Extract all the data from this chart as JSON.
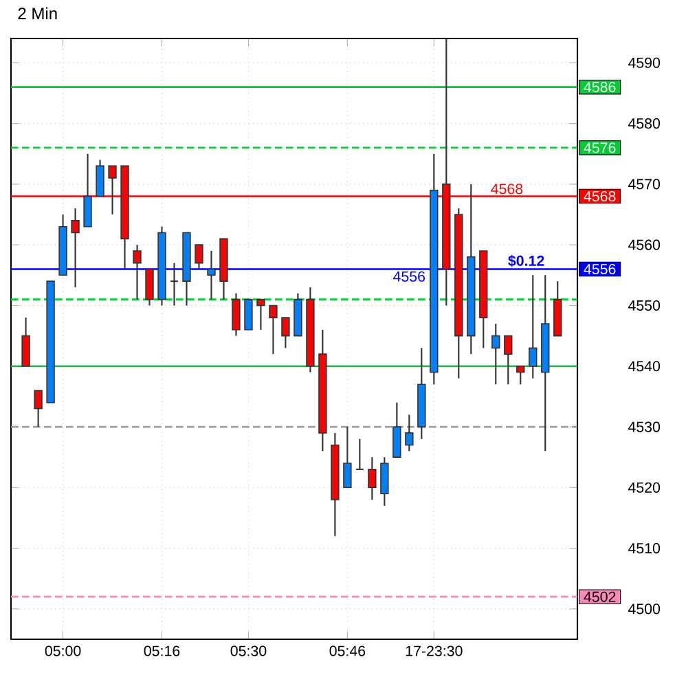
{
  "chart_data": {
    "type": "candlestick",
    "title": "2 Min",
    "categories": [
      null,
      null,
      null,
      "05:00",
      null,
      null,
      null,
      null,
      null,
      null,
      null,
      "05:16",
      null,
      null,
      null,
      null,
      null,
      null,
      "05:30",
      null,
      null,
      null,
      null,
      null,
      null,
      null,
      "05:46",
      null,
      null,
      null,
      null,
      null,
      null,
      "17-23:30",
      null,
      null,
      null,
      null,
      null,
      null,
      null,
      null,
      null,
      null
    ],
    "ohlc": [
      [
        4545,
        4548,
        4540,
        4540
      ],
      [
        4536,
        4536,
        4530,
        4533
      ],
      [
        4534,
        4554,
        4534,
        4554
      ],
      [
        4555,
        4565,
        4555,
        4563
      ],
      [
        4564,
        4566,
        4553,
        4562
      ],
      [
        4563,
        4575,
        4563,
        4568
      ],
      [
        4568,
        4574,
        4568,
        4573
      ],
      [
        4573,
        4573,
        4565,
        4571
      ],
      [
        4573,
        4573,
        4556,
        4561
      ],
      [
        4559,
        4560,
        4551,
        4557
      ],
      [
        4556,
        4556,
        4550,
        4551
      ],
      [
        4551,
        4563,
        4550,
        4562
      ],
      [
        4554,
        4557,
        4550,
        4554
      ],
      [
        4554,
        4562,
        4550,
        4562
      ],
      [
        4560,
        4560,
        4556,
        4557
      ],
      [
        4555,
        4559,
        4551,
        4556
      ],
      [
        4561,
        4561,
        4551,
        4554
      ],
      [
        4551,
        4552,
        4545,
        4546
      ],
      [
        4546,
        4551,
        4546,
        4551
      ],
      [
        4551,
        4551,
        4546,
        4550
      ],
      [
        4550,
        4550,
        4542,
        4548
      ],
      [
        4548,
        4548,
        4543,
        4545
      ],
      [
        4545,
        4552,
        4545,
        4551
      ],
      [
        4551,
        4553,
        4539,
        4540
      ],
      [
        4542,
        4546,
        4526,
        4529
      ],
      [
        4527,
        4529,
        4512,
        4518
      ],
      [
        4520,
        4530,
        4520,
        4524
      ],
      [
        4523,
        4528,
        4523,
        4523
      ],
      [
        4523,
        4525,
        4518,
        4520
      ],
      [
        4519,
        4525,
        4517,
        4524
      ],
      [
        4525,
        4534,
        4525,
        4530
      ],
      [
        4527,
        4532,
        4526,
        4529
      ],
      [
        4530,
        4543,
        4528,
        4537
      ],
      [
        4539,
        4575,
        4537,
        4569
      ],
      [
        4570,
        4594,
        4550,
        4556
      ],
      [
        4565,
        4566,
        4538,
        4545
      ],
      [
        4545,
        4570,
        4542,
        4558
      ],
      [
        4559,
        4559,
        4543,
        4548
      ],
      [
        4543,
        4547,
        4537,
        4545
      ],
      [
        4545,
        4545,
        4537,
        4542
      ],
      [
        4540,
        4540,
        4537,
        4539
      ],
      [
        4540,
        4555,
        4538,
        4543
      ],
      [
        4539,
        4555,
        4526,
        4547
      ],
      [
        4551,
        4554,
        4545,
        4545
      ]
    ],
    "colors": [
      "#ff0000",
      "#ff0000",
      "#0080ff",
      "#0080ff",
      "#ff0000",
      "#0080ff",
      "#0080ff",
      "#ff0000",
      "#ff0000",
      "#ff0000",
      "#ff0000",
      "#0080ff",
      "#333333",
      "#0080ff",
      "#ff0000",
      "#0080ff",
      "#ff0000",
      "#ff0000",
      "#0080ff",
      "#ff0000",
      "#ff0000",
      "#ff0000",
      "#0080ff",
      "#ff0000",
      "#ff0000",
      "#ff0000",
      "#0080ff",
      "#333333",
      "#ff0000",
      "#0080ff",
      "#0080ff",
      "#0080ff",
      "#0080ff",
      "#0080ff",
      "#ff0000",
      "#ff0000",
      "#0080ff",
      "#ff0000",
      "#0080ff",
      "#ff0000",
      "#ff0000",
      "#0080ff",
      "#0080ff",
      "#ff0000"
    ],
    "ylim": [
      4495,
      4594
    ],
    "yticks": [
      4500,
      4510,
      4520,
      4530,
      4540,
      4550,
      4560,
      4570,
      4580,
      4590
    ],
    "grid": true,
    "ref_lines": [
      {
        "axis": "y",
        "value": 4586,
        "label": "4586",
        "color": "#00cc33",
        "line_style": "solid"
      },
      {
        "axis": "y",
        "value": 4576,
        "label": "4576",
        "color": "#00cc33",
        "line_style": "dashed"
      },
      {
        "axis": "y",
        "value": 4568,
        "label": "4568",
        "color": "#ff0000",
        "line_style": "solid"
      },
      {
        "axis": "y",
        "value": 4556,
        "label": "4556",
        "color": "#0000ff",
        "line_style": "solid"
      },
      {
        "axis": "y",
        "value": 4502,
        "label": "4502",
        "color": "#ff88bb",
        "line_style": "dashed"
      },
      {
        "axis": "y",
        "value": 4551,
        "color": "#00cc33",
        "line_style": "dashed"
      },
      {
        "axis": "y",
        "value": 4540,
        "color": "#00cc33",
        "line_style": "solid"
      },
      {
        "axis": "y",
        "value": 4530,
        "color": "#999999",
        "line_style": "dashed"
      }
    ],
    "annotations": [
      {
        "text": "4568",
        "y": 4568
      },
      {
        "text": "$0.12",
        "y": 4556
      },
      {
        "text": "4556",
        "y": 4556
      }
    ]
  }
}
